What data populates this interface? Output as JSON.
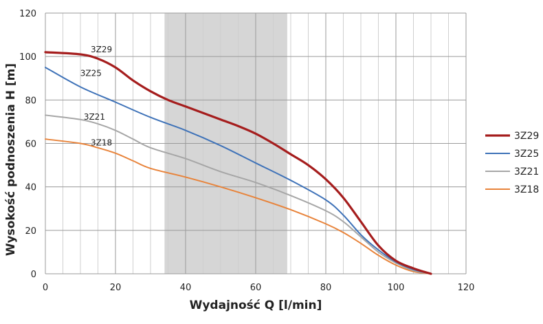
{
  "chart_data": {
    "type": "line",
    "xlabel": "Wydajność Q [l/min]",
    "ylabel": "Wysokość podnoszenia H [m]",
    "xlim": [
      0,
      120
    ],
    "ylim": [
      0,
      120
    ],
    "xticks": [
      0,
      20,
      40,
      60,
      80,
      100,
      120
    ],
    "yticks": [
      0,
      20,
      40,
      60,
      80,
      100,
      120
    ],
    "grid": true,
    "minor_grid_step_x": 5,
    "highlight_band": {
      "x_from": 34,
      "x_to": 69,
      "color": "#d6d6d6"
    },
    "legend_position": "right",
    "series": [
      {
        "name": "3Z29",
        "color": "#a51d1d",
        "label_at": [
          16,
          102
        ],
        "x": [
          0,
          10,
          15,
          20,
          25,
          30,
          35,
          40,
          45,
          50,
          55,
          60,
          65,
          70,
          75,
          80,
          85,
          90,
          95,
          100,
          105,
          110
        ],
        "y": [
          102,
          101,
          99,
          95,
          89,
          84,
          80,
          77,
          74,
          71,
          68,
          64.5,
          60,
          55,
          50,
          43.5,
          35,
          24,
          13,
          6,
          2.5,
          0
        ]
      },
      {
        "name": "3Z25",
        "color": "#3e72b8",
        "label_at": [
          13,
          91
        ],
        "x": [
          0,
          10,
          20,
          30,
          40,
          50,
          60,
          70,
          80,
          85,
          90,
          95,
          100,
          105,
          110
        ],
        "y": [
          95,
          86,
          79,
          72,
          66,
          59,
          51,
          43,
          34,
          27,
          18,
          11,
          5.5,
          2,
          0
        ]
      },
      {
        "name": "3Z21",
        "color": "#a6a6a6",
        "label_at": [
          14,
          71
        ],
        "x": [
          0,
          10,
          15,
          20,
          25,
          30,
          40,
          50,
          60,
          70,
          80,
          85,
          90,
          95,
          100,
          105,
          110
        ],
        "y": [
          73,
          71,
          69,
          66,
          62,
          58,
          53,
          47,
          42,
          36,
          29,
          24,
          17,
          10,
          5,
          1.5,
          0
        ]
      },
      {
        "name": "3Z18",
        "color": "#e8833a",
        "label_at": [
          16,
          59
        ],
        "x": [
          0,
          10,
          15,
          20,
          25,
          30,
          40,
          50,
          60,
          70,
          80,
          85,
          90,
          95,
          100,
          105,
          110
        ],
        "y": [
          62,
          60,
          58,
          55.5,
          52,
          48.5,
          44.5,
          40,
          35,
          29.5,
          23,
          19,
          14,
          8.5,
          4,
          1,
          0
        ]
      }
    ]
  }
}
